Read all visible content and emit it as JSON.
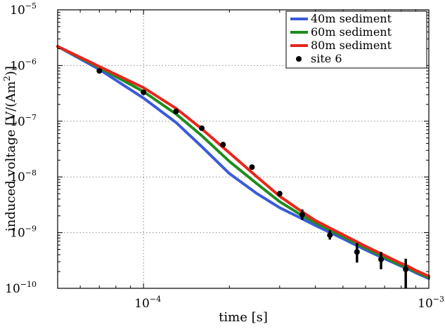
{
  "chart_data": {
    "type": "line",
    "xscale": "log",
    "yscale": "log",
    "xlim": [
      5e-05,
      0.001
    ],
    "ylim": [
      1e-10,
      1e-05
    ],
    "xlabel": "time [s]",
    "ylabel_parts": [
      "induced voltage [V/(Am",
      "2",
      ")]"
    ],
    "xticks": [
      {
        "value": 0.0001,
        "base": "10",
        "exp": "−4"
      },
      {
        "value": 0.001,
        "base": "10",
        "exp": "−3"
      }
    ],
    "yticks": [
      {
        "value": 1e-10,
        "base": "10",
        "exp": "−10"
      },
      {
        "value": 1e-09,
        "base": "10",
        "exp": "−9"
      },
      {
        "value": 1e-08,
        "base": "10",
        "exp": "−8"
      },
      {
        "value": 1e-07,
        "base": "10",
        "exp": "−7"
      },
      {
        "value": 1e-06,
        "base": "10",
        "exp": "−6"
      },
      {
        "value": 1e-05,
        "base": "10",
        "exp": "−5"
      }
    ],
    "grid": true,
    "legend_position": "top-right",
    "series": [
      {
        "name": "40m sediment",
        "color": "#3b5bd9",
        "x": [
          5e-05,
          7e-05,
          0.0001,
          0.00013,
          0.00016,
          0.0002,
          0.00025,
          0.0003,
          0.00035,
          0.0004,
          0.0005,
          0.0006,
          0.0007,
          0.0008,
          0.00085,
          0.0009,
          0.001
        ],
        "y": [
          2.2e-06,
          8.5e-07,
          2.6e-07,
          9.5e-08,
          3.5e-08,
          1.15e-08,
          5e-09,
          2.8e-09,
          1.9e-09,
          1.35e-09,
          7.8e-10,
          4.9e-10,
          3.4e-10,
          2.5e-10,
          2.2e-10,
          1.9e-10,
          1.5e-10
        ]
      },
      {
        "name": "60m sediment",
        "color": "#1e8c1e",
        "x": [
          5e-05,
          7e-05,
          0.0001,
          0.00013,
          0.00016,
          0.0002,
          0.00025,
          0.0003,
          0.00035,
          0.0004,
          0.0005,
          0.0006,
          0.0007,
          0.0008,
          0.00085,
          0.0009,
          0.001
        ],
        "y": [
          2.2e-06,
          9.2e-07,
          3.4e-07,
          1.35e-07,
          5.5e-08,
          1.9e-08,
          7.5e-09,
          3.6e-09,
          2.2e-09,
          1.5e-09,
          8.5e-10,
          5.3e-10,
          3.6e-10,
          2.6e-10,
          2.3e-10,
          2e-10,
          1.55e-10
        ]
      },
      {
        "name": "80m sediment",
        "color": "#e8251c",
        "x": [
          5e-05,
          7e-05,
          0.0001,
          0.00013,
          0.00016,
          0.0002,
          0.00025,
          0.0003,
          0.00035,
          0.0004,
          0.0005,
          0.0006,
          0.0007,
          0.0008,
          0.00085,
          0.0009,
          0.001
        ],
        "y": [
          2.2e-06,
          9.6e-07,
          4e-07,
          1.7e-07,
          7.3e-08,
          2.7e-08,
          1e-08,
          4.5e-09,
          2.6e-09,
          1.65e-09,
          9.2e-10,
          5.7e-10,
          3.9e-10,
          2.8e-10,
          2.45e-10,
          2.1e-10,
          1.65e-10
        ]
      }
    ],
    "measured": {
      "name": "site 6",
      "color": "#000000",
      "points": [
        {
          "x": 7e-05,
          "y": 8e-07,
          "lo": 7.5e-07,
          "hi": 8.6e-07
        },
        {
          "x": 0.0001,
          "y": 3.3e-07,
          "lo": 3.1e-07,
          "hi": 3.5e-07
        },
        {
          "x": 0.00013,
          "y": 1.5e-07,
          "lo": 1.4e-07,
          "hi": 1.6e-07
        },
        {
          "x": 0.00016,
          "y": 7.5e-08,
          "lo": 7e-08,
          "hi": 8e-08
        },
        {
          "x": 0.00019,
          "y": 3.8e-08,
          "lo": 3.5e-08,
          "hi": 4.1e-08
        },
        {
          "x": 0.00024,
          "y": 1.5e-08,
          "lo": 1.4e-08,
          "hi": 1.6e-08
        },
        {
          "x": 0.0003,
          "y": 5e-09,
          "lo": 4.5e-09,
          "hi": 5.6e-09
        },
        {
          "x": 0.00036,
          "y": 2.1e-09,
          "lo": 1.7e-09,
          "hi": 2.6e-09
        },
        {
          "x": 0.00045,
          "y": 9e-10,
          "lo": 7.5e-10,
          "hi": 1.1e-09
        },
        {
          "x": 0.00056,
          "y": 4.5e-10,
          "lo": 2.9e-10,
          "hi": 6.5e-10
        },
        {
          "x": 0.00068,
          "y": 3.3e-10,
          "lo": 2.2e-10,
          "hi": 4.5e-10
        },
        {
          "x": 0.00083,
          "y": 2.2e-10,
          "lo": 1e-10,
          "hi": 3.4e-10
        }
      ]
    }
  }
}
